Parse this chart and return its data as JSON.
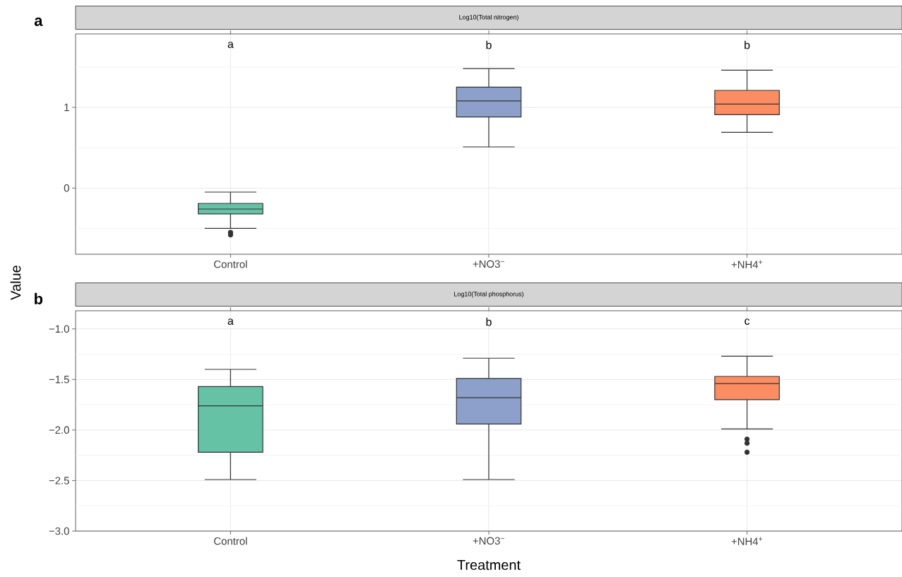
{
  "chart_data": [
    {
      "type": "box",
      "title": "Log10(Total nitrogen)",
      "ylabel": "Value",
      "categories": [
        "Control",
        "+NO3$^{−}$",
        "+NH4$^{+}$"
      ],
      "colors": [
        "#66c2a5",
        "#8da0cb",
        "#fc8d62"
      ],
      "boxes": [
        {
          "low": -0.5,
          "q1": -0.32,
          "median": -0.26,
          "q3": -0.19,
          "high": -0.05,
          "outliers": [
            -0.55,
            -0.58
          ]
        },
        {
          "low": 0.51,
          "q1": 0.88,
          "median": 1.08,
          "q3": 1.25,
          "high": 1.48
        },
        {
          "low": 0.69,
          "q1": 0.91,
          "median": 1.04,
          "q3": 1.21,
          "high": 1.46
        }
      ],
      "ylim": [
        -0.82,
        1.91
      ],
      "yticks": [
        {
          "value": -0.5,
          "label": null
        },
        0,
        {
          "value": 0.5,
          "label": null
        },
        1,
        {
          "value": 1.5,
          "label": null
        }
      ],
      "grid": true,
      "annotations": [
        "a",
        "a",
        "b",
        "b"
      ]
    },
    {
      "type": "box",
      "title": "Log10(Total phosphorus)",
      "xlabel": "Treatment",
      "categories": [
        "Control",
        "+NO3$^{−}$",
        "+NH4$^{+}$"
      ],
      "colors": [
        "#66c2a5",
        "#8da0cb",
        "#fc8d62"
      ],
      "boxes": [
        {
          "low": -2.49,
          "q1": -2.22,
          "median": -1.76,
          "q3": -1.57,
          "high": -1.4
        },
        {
          "low": -2.49,
          "q1": -1.94,
          "median": -1.68,
          "q3": -1.49,
          "high": -1.29
        },
        {
          "low": -1.99,
          "q1": -1.7,
          "median": -1.54,
          "q3": -1.47,
          "high": -1.27,
          "outliers": [
            -2.09,
            -2.13,
            -2.22
          ]
        }
      ],
      "ylim": [
        -3.0,
        -0.82
      ],
      "yticks": [
        {
          "value": -1.0,
          "label": "−1.0"
        },
        {
          "value": -1.25,
          "label": null
        },
        {
          "value": -1.5,
          "label": "−1.5"
        },
        {
          "value": -1.75,
          "label": null
        },
        {
          "value": -2.0,
          "label": "−2.0"
        },
        {
          "value": -2.25,
          "label": null
        },
        {
          "value": -2.5,
          "label": "−2.5"
        },
        {
          "value": -2.75,
          "label": null
        },
        {
          "value": -3.0,
          "label": "−3.0"
        }
      ],
      "grid": true,
      "annotations": [
        "b",
        "a",
        "b",
        "c"
      ]
    }
  ]
}
